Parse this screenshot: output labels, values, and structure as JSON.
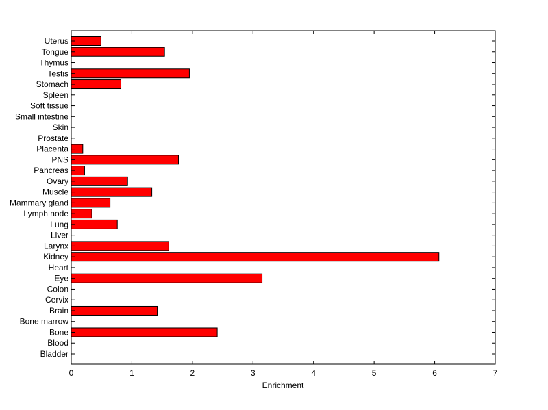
{
  "chart_data": {
    "type": "bar",
    "orientation": "horizontal",
    "categories": [
      "Bladder",
      "Blood",
      "Bone",
      "Bone marrow",
      "Brain",
      "Cervix",
      "Colon",
      "Eye",
      "Heart",
      "Kidney",
      "Larynx",
      "Liver",
      "Lung",
      "Lymph node",
      "Mammary gland",
      "Muscle",
      "Ovary",
      "Pancreas",
      "PNS",
      "Placenta",
      "Prostate",
      "Skin",
      "Small intestine",
      "Soft tissue",
      "Spleen",
      "Stomach",
      "Testis",
      "Thymus",
      "Tongue",
      "Uterus"
    ],
    "values": [
      0,
      0,
      2.41,
      0,
      1.42,
      0,
      0,
      3.15,
      0,
      6.07,
      1.61,
      0,
      0.76,
      0.34,
      0.64,
      1.33,
      0.93,
      0.22,
      1.77,
      0.19,
      0,
      0,
      0,
      0,
      0,
      0.82,
      1.95,
      0,
      1.54,
      0.49
    ],
    "title": "",
    "xlabel": "Enrichment",
    "ylabel": "",
    "xlim": [
      0,
      7
    ],
    "xticks": [
      "0",
      "1",
      "2",
      "3",
      "4",
      "5",
      "6",
      "7"
    ],
    "grid": false,
    "bar_color": "#ff0000",
    "bar_edge_color": "#000000"
  }
}
